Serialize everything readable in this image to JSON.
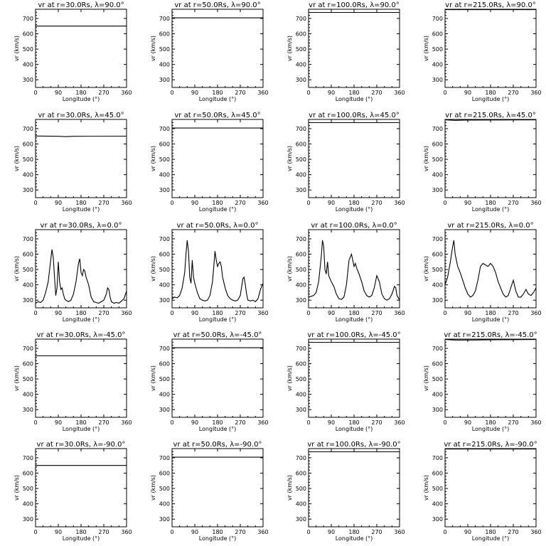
{
  "chart_data": [
    {
      "type": "line",
      "row": 0,
      "col": 0,
      "title": "vr at r=30.0Rs, λ=90.0°",
      "xlabel": "Longitude (°)",
      "ylabel": "vr (km/s)",
      "xlim": [
        0,
        360
      ],
      "ylim": [
        250,
        760
      ],
      "xticks": [
        0,
        90,
        180,
        270,
        360
      ],
      "yticks": [
        300,
        400,
        500,
        600,
        700
      ],
      "series": [
        {
          "x": [
            0,
            360
          ],
          "y": [
            650,
            650
          ]
        }
      ]
    },
    {
      "type": "line",
      "row": 0,
      "col": 1,
      "title": "vr at r=50.0Rs, λ=90.0°",
      "xlabel": "Longitude (°)",
      "ylabel": "vr (km/s)",
      "xlim": [
        0,
        360
      ],
      "ylim": [
        250,
        760
      ],
      "xticks": [
        0,
        90,
        180,
        270,
        360
      ],
      "yticks": [
        300,
        400,
        500,
        600,
        700
      ],
      "series": [
        {
          "x": [
            0,
            360
          ],
          "y": [
            704,
            704
          ]
        }
      ]
    },
    {
      "type": "line",
      "row": 0,
      "col": 2,
      "title": "vr at r=100.0Rs, λ=90.0°",
      "xlabel": "Longitude (°)",
      "ylabel": "vr (km/s)",
      "xlim": [
        0,
        360
      ],
      "ylim": [
        250,
        760
      ],
      "xticks": [
        0,
        90,
        180,
        270,
        360
      ],
      "yticks": [
        300,
        400,
        500,
        600,
        700
      ],
      "series": [
        {
          "x": [
            0,
            360
          ],
          "y": [
            739,
            739
          ]
        }
      ]
    },
    {
      "type": "line",
      "row": 0,
      "col": 3,
      "title": "vr at r=215.0Rs, λ=90.0°",
      "xlabel": "Longitude (°)",
      "ylabel": "vr (km/s)",
      "xlim": [
        0,
        360
      ],
      "ylim": [
        250,
        760
      ],
      "xticks": [
        0,
        90,
        180,
        270,
        360
      ],
      "yticks": [
        300,
        400,
        500,
        600,
        700
      ],
      "series": [
        {
          "x": [
            0,
            360
          ],
          "y": [
            757,
            757
          ]
        }
      ]
    },
    {
      "type": "line",
      "row": 1,
      "col": 0,
      "title": "vr at r=30.0Rs, λ=45.0°",
      "xlabel": "Longitude (°)",
      "ylabel": "vr (km/s)",
      "xlim": [
        0,
        360
      ],
      "ylim": [
        250,
        760
      ],
      "xticks": [
        0,
        90,
        180,
        270,
        360
      ],
      "yticks": [
        300,
        400,
        500,
        600,
        700
      ],
      "series": [
        {
          "x": [
            0,
            90,
            120,
            150,
            360
          ],
          "y": [
            652,
            650,
            648,
            650,
            651
          ]
        }
      ]
    },
    {
      "type": "line",
      "row": 1,
      "col": 1,
      "title": "vr at r=50.0Rs, λ=45.0°",
      "xlabel": "Longitude (°)",
      "ylabel": "vr (km/s)",
      "xlim": [
        0,
        360
      ],
      "ylim": [
        250,
        760
      ],
      "xticks": [
        0,
        90,
        180,
        270,
        360
      ],
      "yticks": [
        300,
        400,
        500,
        600,
        700
      ],
      "series": [
        {
          "x": [
            0,
            360
          ],
          "y": [
            704,
            704
          ]
        }
      ]
    },
    {
      "type": "line",
      "row": 1,
      "col": 2,
      "title": "vr at r=100.0Rs, λ=45.0°",
      "xlabel": "Longitude (°)",
      "ylabel": "vr (km/s)",
      "xlim": [
        0,
        360
      ],
      "ylim": [
        250,
        760
      ],
      "xticks": [
        0,
        90,
        180,
        270,
        360
      ],
      "yticks": [
        300,
        400,
        500,
        600,
        700
      ],
      "series": [
        {
          "x": [
            0,
            360
          ],
          "y": [
            739,
            739
          ]
        }
      ]
    },
    {
      "type": "line",
      "row": 1,
      "col": 3,
      "title": "vr at r=215.0Rs, λ=45.0°",
      "xlabel": "Longitude (°)",
      "ylabel": "vr (km/s)",
      "xlim": [
        0,
        360
      ],
      "ylim": [
        250,
        760
      ],
      "xticks": [
        0,
        90,
        180,
        270,
        360
      ],
      "yticks": [
        300,
        400,
        500,
        600,
        700
      ],
      "series": [
        {
          "x": [
            0,
            40,
            75,
            360
          ],
          "y": [
            757,
            754,
            756,
            757
          ]
        }
      ]
    },
    {
      "type": "line",
      "row": 2,
      "col": 0,
      "title": "vr at r=30.0Rs, λ=0.0°",
      "xlabel": "Longitude (°)",
      "ylabel": "vr (km/s)",
      "xlim": [
        0,
        360
      ],
      "ylim": [
        250,
        760
      ],
      "xticks": [
        0,
        90,
        180,
        270,
        360
      ],
      "yticks": [
        300,
        400,
        500,
        600,
        700
      ],
      "series": [
        {
          "x": [
            0,
            10,
            20,
            30,
            40,
            50,
            60,
            65,
            70,
            75,
            80,
            85,
            90,
            95,
            100,
            105,
            110,
            115,
            120,
            130,
            140,
            150,
            160,
            170,
            175,
            180,
            185,
            190,
            195,
            200,
            210,
            220,
            230,
            240,
            250,
            260,
            270,
            280,
            285,
            290,
            295,
            300,
            310,
            320,
            330,
            340,
            350,
            360
          ],
          "y": [
            280,
            290,
            285,
            300,
            350,
            420,
            560,
            630,
            580,
            450,
            330,
            380,
            550,
            420,
            370,
            380,
            340,
            310,
            300,
            290,
            300,
            340,
            420,
            540,
            570,
            480,
            460,
            500,
            490,
            450,
            400,
            320,
            290,
            285,
            280,
            290,
            300,
            340,
            380,
            370,
            320,
            290,
            280,
            285,
            280,
            295,
            310,
            360
          ]
        }
      ]
    },
    {
      "type": "line",
      "row": 2,
      "col": 1,
      "title": "vr at r=50.0Rs, λ=0.0°",
      "xlabel": "Longitude (°)",
      "ylabel": "vr (km/s)",
      "xlim": [
        0,
        360
      ],
      "ylim": [
        250,
        760
      ],
      "xticks": [
        0,
        90,
        180,
        270,
        360
      ],
      "yticks": [
        300,
        400,
        500,
        600,
        700
      ],
      "series": [
        {
          "x": [
            0,
            10,
            20,
            30,
            40,
            50,
            55,
            60,
            65,
            70,
            75,
            80,
            85,
            90,
            95,
            100,
            110,
            120,
            130,
            140,
            150,
            160,
            165,
            170,
            175,
            180,
            185,
            190,
            195,
            200,
            210,
            220,
            230,
            240,
            250,
            260,
            270,
            280,
            285,
            290,
            295,
            300,
            310,
            320,
            330,
            340,
            350,
            360
          ],
          "y": [
            310,
            320,
            315,
            330,
            380,
            480,
            600,
            690,
            620,
            450,
            410,
            560,
            450,
            410,
            380,
            350,
            310,
            300,
            295,
            300,
            330,
            420,
            520,
            620,
            560,
            520,
            540,
            550,
            520,
            450,
            380,
            330,
            310,
            300,
            295,
            300,
            330,
            440,
            450,
            400,
            340,
            300,
            295,
            300,
            290,
            310,
            370,
            410
          ]
        }
      ]
    },
    {
      "type": "line",
      "row": 2,
      "col": 2,
      "title": "vr at r=100.0Rs, λ=0.0°",
      "xlabel": "Longitude (°)",
      "ylabel": "vr (km/s)",
      "xlim": [
        0,
        360
      ],
      "ylim": [
        250,
        760
      ],
      "xticks": [
        0,
        90,
        180,
        270,
        360
      ],
      "yticks": [
        300,
        400,
        500,
        600,
        700
      ],
      "series": [
        {
          "x": [
            0,
            10,
            20,
            30,
            40,
            50,
            55,
            60,
            65,
            70,
            75,
            80,
            90,
            100,
            110,
            120,
            130,
            140,
            150,
            160,
            170,
            175,
            180,
            185,
            190,
            200,
            210,
            220,
            230,
            240,
            250,
            260,
            270,
            280,
            290,
            300,
            310,
            320,
            330,
            340,
            345,
            350,
            360
          ],
          "y": [
            320,
            325,
            330,
            350,
            420,
            580,
            690,
            650,
            500,
            470,
            550,
            460,
            420,
            390,
            340,
            310,
            305,
            320,
            400,
            560,
            600,
            560,
            520,
            540,
            510,
            470,
            420,
            360,
            330,
            320,
            330,
            380,
            460,
            420,
            340,
            310,
            300,
            310,
            340,
            390,
            380,
            330,
            300
          ]
        }
      ]
    },
    {
      "type": "line",
      "row": 2,
      "col": 3,
      "title": "vr at r=215.0Rs, λ=0.0°",
      "xlabel": "Longitude (°)",
      "ylabel": "vr (km/s)",
      "xlim": [
        0,
        360
      ],
      "ylim": [
        250,
        760
      ],
      "xticks": [
        0,
        90,
        180,
        270,
        360
      ],
      "yticks": [
        300,
        400,
        500,
        600,
        700
      ],
      "series": [
        {
          "x": [
            0,
            10,
            20,
            30,
            35,
            40,
            45,
            50,
            60,
            70,
            80,
            90,
            100,
            110,
            120,
            130,
            140,
            150,
            160,
            170,
            180,
            190,
            200,
            210,
            220,
            230,
            240,
            250,
            260,
            270,
            280,
            290,
            300,
            310,
            320,
            330,
            340,
            350,
            360
          ],
          "y": [
            400,
            450,
            540,
            650,
            690,
            600,
            560,
            520,
            480,
            430,
            380,
            340,
            320,
            330,
            360,
            430,
            520,
            540,
            530,
            520,
            540,
            520,
            480,
            420,
            380,
            340,
            320,
            330,
            380,
            430,
            360,
            320,
            320,
            340,
            370,
            340,
            330,
            350,
            380
          ]
        }
      ]
    },
    {
      "type": "line",
      "row": 3,
      "col": 0,
      "title": "vr at r=30.0Rs, λ=-45.0°",
      "xlabel": "Longitude (°)",
      "ylabel": "vr (km/s)",
      "xlim": [
        0,
        360
      ],
      "ylim": [
        250,
        760
      ],
      "xticks": [
        0,
        90,
        180,
        270,
        360
      ],
      "yticks": [
        300,
        400,
        500,
        600,
        700
      ],
      "series": [
        {
          "x": [
            0,
            360
          ],
          "y": [
            651,
            651
          ]
        }
      ]
    },
    {
      "type": "line",
      "row": 3,
      "col": 1,
      "title": "vr at r=50.0Rs, λ=-45.0°",
      "xlabel": "Longitude (°)",
      "ylabel": "vr (km/s)",
      "xlim": [
        0,
        360
      ],
      "ylim": [
        250,
        760
      ],
      "xticks": [
        0,
        90,
        180,
        270,
        360
      ],
      "yticks": [
        300,
        400,
        500,
        600,
        700
      ],
      "series": [
        {
          "x": [
            0,
            360
          ],
          "y": [
            704,
            704
          ]
        }
      ]
    },
    {
      "type": "line",
      "row": 3,
      "col": 2,
      "title": "vr at r=100.0Rs, λ=-45.0°",
      "xlabel": "Longitude (°)",
      "ylabel": "vr (km/s)",
      "xlim": [
        0,
        360
      ],
      "ylim": [
        250,
        760
      ],
      "xticks": [
        0,
        90,
        180,
        270,
        360
      ],
      "yticks": [
        300,
        400,
        500,
        600,
        700
      ],
      "series": [
        {
          "x": [
            0,
            360
          ],
          "y": [
            739,
            739
          ]
        }
      ]
    },
    {
      "type": "line",
      "row": 3,
      "col": 3,
      "title": "vr at r=215.0Rs, λ=-45.0°",
      "xlabel": "Longitude (°)",
      "ylabel": "vr (km/s)",
      "xlim": [
        0,
        360
      ],
      "ylim": [
        250,
        760
      ],
      "xticks": [
        0,
        90,
        180,
        270,
        360
      ],
      "yticks": [
        300,
        400,
        500,
        600,
        700
      ],
      "series": [
        {
          "x": [
            0,
            40,
            100,
            180,
            360
          ],
          "y": [
            757,
            754,
            754,
            756,
            757
          ]
        }
      ]
    },
    {
      "type": "line",
      "row": 4,
      "col": 0,
      "title": "vr at r=30.0Rs, λ=-90.0°",
      "xlabel": "Longitude (°)",
      "ylabel": "vr (km/s)",
      "xlim": [
        0,
        360
      ],
      "ylim": [
        250,
        760
      ],
      "xticks": [
        0,
        90,
        180,
        270,
        360
      ],
      "yticks": [
        300,
        400,
        500,
        600,
        700
      ],
      "series": [
        {
          "x": [
            0,
            360
          ],
          "y": [
            650,
            650
          ]
        }
      ]
    },
    {
      "type": "line",
      "row": 4,
      "col": 1,
      "title": "vr at r=50.0Rs, λ=-90.0°",
      "xlabel": "Longitude (°)",
      "ylabel": "vr (km/s)",
      "xlim": [
        0,
        360
      ],
      "ylim": [
        250,
        760
      ],
      "xticks": [
        0,
        90,
        180,
        270,
        360
      ],
      "yticks": [
        300,
        400,
        500,
        600,
        700
      ],
      "series": [
        {
          "x": [
            0,
            360
          ],
          "y": [
            704,
            704
          ]
        }
      ]
    },
    {
      "type": "line",
      "row": 4,
      "col": 2,
      "title": "vr at r=100.0Rs, λ=-90.0°",
      "xlabel": "Longitude (°)",
      "ylabel": "vr (km/s)",
      "xlim": [
        0,
        360
      ],
      "ylim": [
        250,
        760
      ],
      "xticks": [
        0,
        90,
        180,
        270,
        360
      ],
      "yticks": [
        300,
        400,
        500,
        600,
        700
      ],
      "series": [
        {
          "x": [
            0,
            360
          ],
          "y": [
            739,
            739
          ]
        }
      ]
    },
    {
      "type": "line",
      "row": 4,
      "col": 3,
      "title": "vr at r=215.0Rs, λ=-90.0°",
      "xlabel": "Longitude (°)",
      "ylabel": "vr (km/s)",
      "xlim": [
        0,
        360
      ],
      "ylim": [
        250,
        760
      ],
      "xticks": [
        0,
        90,
        180,
        270,
        360
      ],
      "yticks": [
        300,
        400,
        500,
        600,
        700
      ],
      "series": [
        {
          "x": [
            0,
            360
          ],
          "y": [
            757,
            757
          ]
        }
      ]
    }
  ]
}
